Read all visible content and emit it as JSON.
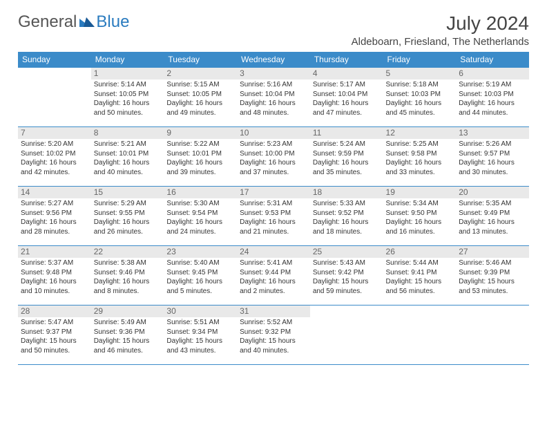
{
  "logo": {
    "text1": "General",
    "text2": "Blue"
  },
  "header": {
    "month": "July 2024",
    "location": "Aldeboarn, Friesland, The Netherlands"
  },
  "colors": {
    "header_bg": "#3b8bc9",
    "header_text": "#ffffff",
    "rule": "#3b8bc9",
    "daybar": "#e9e9e9"
  },
  "weekdays": [
    "Sunday",
    "Monday",
    "Tuesday",
    "Wednesday",
    "Thursday",
    "Friday",
    "Saturday"
  ],
  "weeks": [
    [
      null,
      {
        "n": "1",
        "sr": "Sunrise: 5:14 AM",
        "ss": "Sunset: 10:05 PM",
        "d1": "Daylight: 16 hours",
        "d2": "and 50 minutes."
      },
      {
        "n": "2",
        "sr": "Sunrise: 5:15 AM",
        "ss": "Sunset: 10:05 PM",
        "d1": "Daylight: 16 hours",
        "d2": "and 49 minutes."
      },
      {
        "n": "3",
        "sr": "Sunrise: 5:16 AM",
        "ss": "Sunset: 10:04 PM",
        "d1": "Daylight: 16 hours",
        "d2": "and 48 minutes."
      },
      {
        "n": "4",
        "sr": "Sunrise: 5:17 AM",
        "ss": "Sunset: 10:04 PM",
        "d1": "Daylight: 16 hours",
        "d2": "and 47 minutes."
      },
      {
        "n": "5",
        "sr": "Sunrise: 5:18 AM",
        "ss": "Sunset: 10:03 PM",
        "d1": "Daylight: 16 hours",
        "d2": "and 45 minutes."
      },
      {
        "n": "6",
        "sr": "Sunrise: 5:19 AM",
        "ss": "Sunset: 10:03 PM",
        "d1": "Daylight: 16 hours",
        "d2": "and 44 minutes."
      }
    ],
    [
      {
        "n": "7",
        "sr": "Sunrise: 5:20 AM",
        "ss": "Sunset: 10:02 PM",
        "d1": "Daylight: 16 hours",
        "d2": "and 42 minutes."
      },
      {
        "n": "8",
        "sr": "Sunrise: 5:21 AM",
        "ss": "Sunset: 10:01 PM",
        "d1": "Daylight: 16 hours",
        "d2": "and 40 minutes."
      },
      {
        "n": "9",
        "sr": "Sunrise: 5:22 AM",
        "ss": "Sunset: 10:01 PM",
        "d1": "Daylight: 16 hours",
        "d2": "and 39 minutes."
      },
      {
        "n": "10",
        "sr": "Sunrise: 5:23 AM",
        "ss": "Sunset: 10:00 PM",
        "d1": "Daylight: 16 hours",
        "d2": "and 37 minutes."
      },
      {
        "n": "11",
        "sr": "Sunrise: 5:24 AM",
        "ss": "Sunset: 9:59 PM",
        "d1": "Daylight: 16 hours",
        "d2": "and 35 minutes."
      },
      {
        "n": "12",
        "sr": "Sunrise: 5:25 AM",
        "ss": "Sunset: 9:58 PM",
        "d1": "Daylight: 16 hours",
        "d2": "and 33 minutes."
      },
      {
        "n": "13",
        "sr": "Sunrise: 5:26 AM",
        "ss": "Sunset: 9:57 PM",
        "d1": "Daylight: 16 hours",
        "d2": "and 30 minutes."
      }
    ],
    [
      {
        "n": "14",
        "sr": "Sunrise: 5:27 AM",
        "ss": "Sunset: 9:56 PM",
        "d1": "Daylight: 16 hours",
        "d2": "and 28 minutes."
      },
      {
        "n": "15",
        "sr": "Sunrise: 5:29 AM",
        "ss": "Sunset: 9:55 PM",
        "d1": "Daylight: 16 hours",
        "d2": "and 26 minutes."
      },
      {
        "n": "16",
        "sr": "Sunrise: 5:30 AM",
        "ss": "Sunset: 9:54 PM",
        "d1": "Daylight: 16 hours",
        "d2": "and 24 minutes."
      },
      {
        "n": "17",
        "sr": "Sunrise: 5:31 AM",
        "ss": "Sunset: 9:53 PM",
        "d1": "Daylight: 16 hours",
        "d2": "and 21 minutes."
      },
      {
        "n": "18",
        "sr": "Sunrise: 5:33 AM",
        "ss": "Sunset: 9:52 PM",
        "d1": "Daylight: 16 hours",
        "d2": "and 18 minutes."
      },
      {
        "n": "19",
        "sr": "Sunrise: 5:34 AM",
        "ss": "Sunset: 9:50 PM",
        "d1": "Daylight: 16 hours",
        "d2": "and 16 minutes."
      },
      {
        "n": "20",
        "sr": "Sunrise: 5:35 AM",
        "ss": "Sunset: 9:49 PM",
        "d1": "Daylight: 16 hours",
        "d2": "and 13 minutes."
      }
    ],
    [
      {
        "n": "21",
        "sr": "Sunrise: 5:37 AM",
        "ss": "Sunset: 9:48 PM",
        "d1": "Daylight: 16 hours",
        "d2": "and 10 minutes."
      },
      {
        "n": "22",
        "sr": "Sunrise: 5:38 AM",
        "ss": "Sunset: 9:46 PM",
        "d1": "Daylight: 16 hours",
        "d2": "and 8 minutes."
      },
      {
        "n": "23",
        "sr": "Sunrise: 5:40 AM",
        "ss": "Sunset: 9:45 PM",
        "d1": "Daylight: 16 hours",
        "d2": "and 5 minutes."
      },
      {
        "n": "24",
        "sr": "Sunrise: 5:41 AM",
        "ss": "Sunset: 9:44 PM",
        "d1": "Daylight: 16 hours",
        "d2": "and 2 minutes."
      },
      {
        "n": "25",
        "sr": "Sunrise: 5:43 AM",
        "ss": "Sunset: 9:42 PM",
        "d1": "Daylight: 15 hours",
        "d2": "and 59 minutes."
      },
      {
        "n": "26",
        "sr": "Sunrise: 5:44 AM",
        "ss": "Sunset: 9:41 PM",
        "d1": "Daylight: 15 hours",
        "d2": "and 56 minutes."
      },
      {
        "n": "27",
        "sr": "Sunrise: 5:46 AM",
        "ss": "Sunset: 9:39 PM",
        "d1": "Daylight: 15 hours",
        "d2": "and 53 minutes."
      }
    ],
    [
      {
        "n": "28",
        "sr": "Sunrise: 5:47 AM",
        "ss": "Sunset: 9:37 PM",
        "d1": "Daylight: 15 hours",
        "d2": "and 50 minutes."
      },
      {
        "n": "29",
        "sr": "Sunrise: 5:49 AM",
        "ss": "Sunset: 9:36 PM",
        "d1": "Daylight: 15 hours",
        "d2": "and 46 minutes."
      },
      {
        "n": "30",
        "sr": "Sunrise: 5:51 AM",
        "ss": "Sunset: 9:34 PM",
        "d1": "Daylight: 15 hours",
        "d2": "and 43 minutes."
      },
      {
        "n": "31",
        "sr": "Sunrise: 5:52 AM",
        "ss": "Sunset: 9:32 PM",
        "d1": "Daylight: 15 hours",
        "d2": "and 40 minutes."
      },
      null,
      null,
      null
    ]
  ]
}
